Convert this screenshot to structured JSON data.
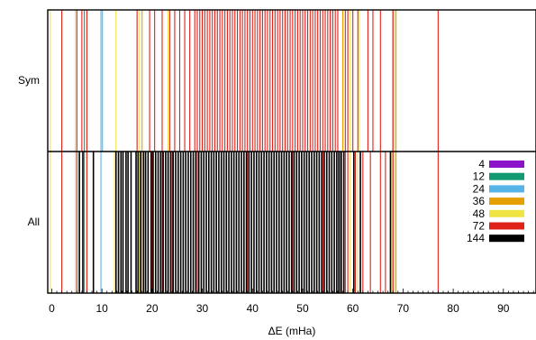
{
  "chart_data": {
    "type": "bar",
    "subtype": "event-lines",
    "title": "",
    "xlabel": "ΔE (mHa)",
    "ylabel": "",
    "xlim": [
      -0.8,
      96.5
    ],
    "xticks": [
      0,
      10,
      20,
      30,
      40,
      50,
      60,
      70,
      80,
      90
    ],
    "xtick_labels": [
      "0",
      "10",
      "20",
      "30",
      "40",
      "50",
      "60",
      "70",
      "80",
      "90"
    ],
    "minor_tick_step": 1,
    "grid": false,
    "legend_position": "right",
    "panels": [
      {
        "name": "Sym",
        "label": "Sym"
      },
      {
        "name": "All",
        "label": "All"
      }
    ],
    "legend": [
      {
        "label": "4",
        "color": "#8c14c8"
      },
      {
        "label": "12",
        "color": "#129a72"
      },
      {
        "label": "24",
        "color": "#56b4e9"
      },
      {
        "label": "36",
        "color": "#e69f00"
      },
      {
        "label": "48",
        "color": "#f0e442"
      },
      {
        "label": "72",
        "color": "#e0211a"
      },
      {
        "label": "144",
        "color": "#000000"
      }
    ],
    "series": [
      {
        "name": "48",
        "color": "#f0e442",
        "panel": "Sym",
        "values": [
          -0.3,
          4.7,
          12.8,
          17.5,
          23.2,
          59.5,
          61.3,
          67.9,
          68.3
        ]
      },
      {
        "name": "36",
        "color": "#e69f00",
        "panel": "Sym",
        "values": [
          18.0,
          58.0,
          68.6
        ]
      },
      {
        "name": "12",
        "color": "#129a72",
        "panel": "Sym",
        "values": [
          6.5
        ]
      },
      {
        "name": "24",
        "color": "#56b4e9",
        "panel": "Sym",
        "values": [
          9.8,
          10.1
        ]
      },
      {
        "name": "72",
        "color": "#e0211a",
        "panel": "Sym",
        "values": [
          2.0,
          5.0,
          6.0,
          7.0,
          17.0,
          19.5,
          20.5,
          22.0,
          23.5,
          24.5,
          25.5,
          26.5,
          27.5,
          28.5,
          29.0,
          29.5,
          30.0,
          30.5,
          31.0,
          31.5,
          32.0,
          32.5,
          33.0,
          33.5,
          34.0,
          34.5,
          35.0,
          35.5,
          36.0,
          36.5,
          37.0,
          37.5,
          38.0,
          38.5,
          39.0,
          39.5,
          40.0,
          40.5,
          41.0,
          41.5,
          42.0,
          42.5,
          43.0,
          43.5,
          44.0,
          44.5,
          45.0,
          45.5,
          46.0,
          46.5,
          47.0,
          47.5,
          48.0,
          48.5,
          49.0,
          49.5,
          50.0,
          50.5,
          51.0,
          51.5,
          52.0,
          52.5,
          53.0,
          53.5,
          54.0,
          54.5,
          55.0,
          55.5,
          56.0,
          56.5,
          57.0,
          58.5,
          59.0,
          60.0,
          61.0,
          63.0,
          64.0,
          65.5,
          68.0,
          77.0
        ]
      },
      {
        "name": "48",
        "color": "#f0e442",
        "panel": "All",
        "values": [
          -0.3,
          4.7,
          12.5,
          17.5,
          23.0,
          59.5,
          61.0,
          67.8,
          68.3
        ]
      },
      {
        "name": "36",
        "color": "#e69f00",
        "panel": "All",
        "values": [
          18.0,
          68.6
        ]
      },
      {
        "name": "12",
        "color": "#129a72",
        "panel": "All",
        "values": [
          6.5
        ]
      },
      {
        "name": "24",
        "color": "#56b4e9",
        "panel": "All",
        "values": [
          9.8
        ]
      },
      {
        "name": "72",
        "color": "#e0211a",
        "panel": "All",
        "values": [
          2.0,
          5.0,
          7.0,
          20.0,
          22.0,
          24.0,
          29.0,
          39.0,
          48.0,
          54.0,
          57.5,
          58.5,
          59.0,
          60.5,
          62.0,
          63.5,
          65.5,
          66.5,
          68.0,
          77.0
        ]
      },
      {
        "name": "144",
        "color": "#000000",
        "panel": "All",
        "values": [
          5.5,
          6.2,
          8.3,
          12.8,
          13.3,
          13.8,
          14.2,
          14.8,
          15.2,
          15.8,
          16.8,
          17.2,
          17.7,
          18.3,
          18.7,
          19.2,
          19.8,
          20.2,
          20.7,
          21.2,
          21.7,
          22.2,
          22.7,
          23.2,
          23.7,
          24.2,
          24.7,
          25.2,
          25.7,
          26.2,
          26.7,
          27.2,
          27.7,
          28.2,
          28.7,
          29.3,
          29.8,
          30.3,
          30.8,
          31.3,
          31.8,
          32.3,
          32.8,
          33.3,
          33.8,
          34.3,
          34.8,
          35.3,
          35.8,
          36.3,
          36.8,
          37.3,
          37.8,
          38.3,
          38.8,
          39.3,
          39.8,
          40.3,
          40.8,
          41.3,
          41.8,
          42.3,
          42.8,
          43.3,
          43.8,
          44.3,
          44.8,
          45.3,
          45.8,
          46.3,
          46.8,
          47.3,
          47.8,
          48.3,
          48.8,
          49.3,
          49.8,
          50.3,
          50.8,
          51.3,
          51.8,
          52.3,
          52.8,
          53.3,
          53.8,
          54.3,
          54.8,
          55.3,
          55.8,
          56.3,
          56.8,
          57.2,
          57.7,
          58.2,
          60.2,
          61.5,
          67.5
        ]
      }
    ]
  }
}
